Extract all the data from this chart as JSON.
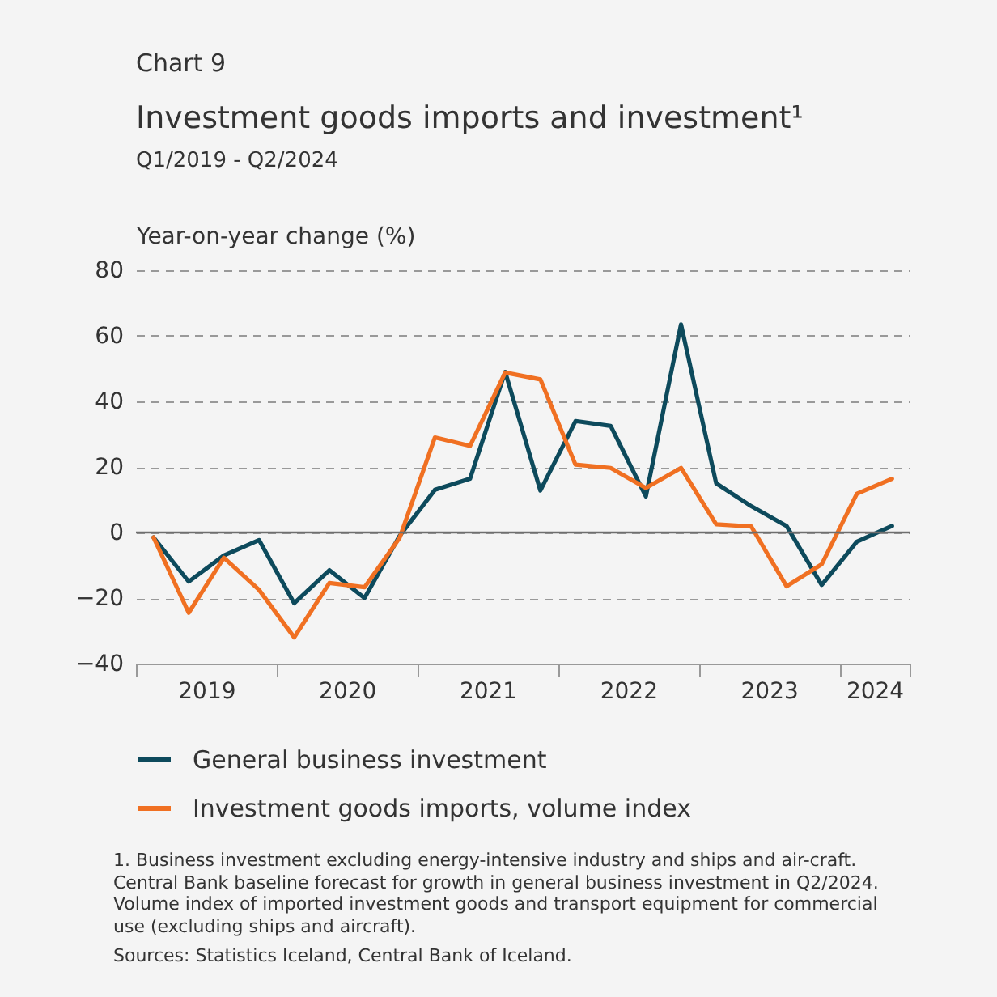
{
  "chart_data": {
    "type": "line",
    "title": "Investment goods imports and investment¹",
    "subtitle": "Q1/2019 - Q2/2024",
    "ylabel": "Year-on-year change (%)",
    "x": [
      2019.125,
      2019.375,
      2019.625,
      2019.875,
      2020.125,
      2020.375,
      2020.625,
      2020.875,
      2021.125,
      2021.375,
      2021.625,
      2021.875,
      2022.125,
      2022.375,
      2022.625,
      2022.875,
      2023.125,
      2023.375,
      2023.625,
      2023.875,
      2024.125,
      2024.375
    ],
    "series": [
      {
        "name": "General business investment",
        "color": "#0d4a5c",
        "values": [
          -1.5,
          -15,
          -7,
          -2.3,
          -21.6,
          -11.5,
          -20,
          -1,
          13,
          16.4,
          49,
          12.8,
          34,
          32.5,
          11,
          63.5,
          15,
          8,
          2,
          -16,
          -2.8,
          2
        ]
      },
      {
        "name": "Investment goods imports, volume index",
        "color": "#f07022",
        "values": [
          -1.5,
          -24.5,
          -7.7,
          -17.5,
          -32,
          -15.4,
          -16.7,
          -1.6,
          29,
          26.4,
          48.8,
          46.7,
          20.7,
          19.7,
          13.6,
          19.7,
          2.5,
          1.8,
          -16.4,
          -9.7,
          11.8,
          16.4
        ]
      }
    ],
    "xlim": [
      2019,
      2024.5
    ],
    "xticks": [
      {
        "value": 2019,
        "label": null
      },
      {
        "value": 2019.5,
        "label": "2019"
      },
      {
        "value": 2020,
        "label": null
      },
      {
        "value": 2020.5,
        "label": "2020"
      },
      {
        "value": 2021,
        "label": null
      },
      {
        "value": 2021.5,
        "label": "2021"
      },
      {
        "value": 2022,
        "label": null
      },
      {
        "value": 2022.5,
        "label": "2022"
      },
      {
        "value": 2023,
        "label": null
      },
      {
        "value": 2023.5,
        "label": "2023"
      },
      {
        "value": 2024,
        "label": null
      },
      {
        "value": 2024.25,
        "label": "2024"
      },
      {
        "value": 2024.5,
        "label": null
      }
    ],
    "ylim": [
      -40,
      80
    ],
    "yticks": [
      -40,
      -20,
      0,
      20,
      40,
      60,
      80
    ],
    "grid": "y",
    "legend": "bottom",
    "line_style": "solid",
    "ref_lines": [
      {
        "axis": "y",
        "value": 0,
        "color": "#6e6e6e"
      }
    ],
    "annotations": [
      "Chart 9",
      "1. Business investment excluding energy-intensive industry and ships and air-craft. Central Bank baseline forecast for growth in general business investment in Q2/2024. Volume index of imported investment goods and transport equipment for commercial use (excluding ships and aircraft).",
      "Sources: Statistics Iceland, Central Bank of Iceland."
    ]
  }
}
